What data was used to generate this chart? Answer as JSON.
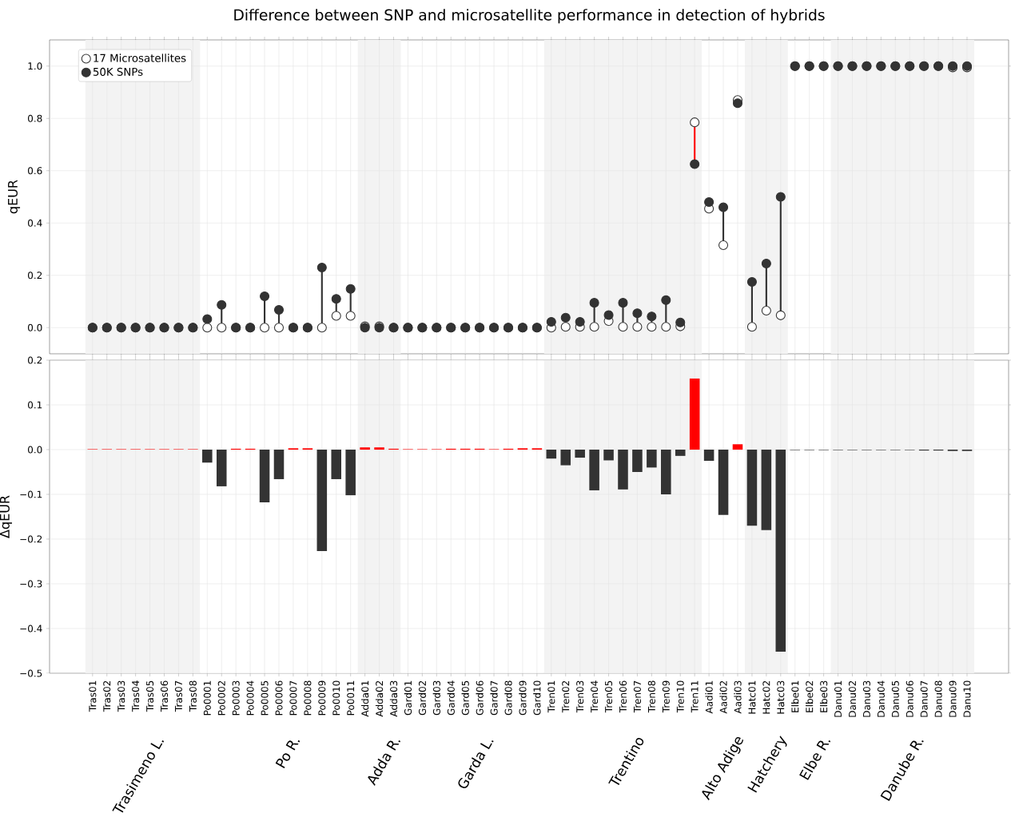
{
  "chart_data": [
    {
      "type": "scatter",
      "title": "Difference between SNP and microsatellite performance in detection of hybrids",
      "ylabel": "qEUR",
      "categories": [
        "Tras01",
        "Tras02",
        "Tras03",
        "Tras04",
        "Tras05",
        "Tras06",
        "Tras07",
        "Tras08",
        "Po0001",
        "Po0002",
        "Po0003",
        "Po0004",
        "Po0005",
        "Po0006",
        "Po0007",
        "Po0008",
        "Po0009",
        "Po0010",
        "Po0011",
        "Adda01",
        "Adda02",
        "Adda03",
        "Gard01",
        "Gard02",
        "Gard03",
        "Gard04",
        "Gard05",
        "Gard06",
        "Gard07",
        "Gard08",
        "Gard09",
        "Gard10",
        "Tren01",
        "Tren02",
        "Tren03",
        "Tren04",
        "Tren05",
        "Tren06",
        "Tren07",
        "Tren08",
        "Tren09",
        "Tren10",
        "Tren11",
        "Aadi01",
        "Aadi02",
        "Aadi03",
        "Hatc01",
        "Hatc02",
        "Hatc03",
        "Elbe01",
        "Elbe02",
        "Elbe03",
        "Danu01",
        "Danu02",
        "Danu03",
        "Danu04",
        "Danu05",
        "Danu06",
        "Danu07",
        "Danu08",
        "Danu09",
        "Danu10"
      ],
      "series": [
        {
          "name": "17 Microsatellites",
          "color": "#ffffff",
          "values": [
            0,
            0,
            0,
            0,
            0,
            0,
            0,
            0,
            0,
            0,
            0,
            0,
            0,
            0,
            0,
            0,
            0,
            0.045,
            0.045,
            0.005,
            0.005,
            0,
            0,
            0,
            0,
            0,
            0,
            0,
            0,
            0,
            0,
            0,
            0,
            0.003,
            0.003,
            0.003,
            0.025,
            0.003,
            0.003,
            0.003,
            0.003,
            0.005,
            0.785,
            0.455,
            0.315,
            0.87,
            0.003,
            0.065,
            0.047,
            1,
            1,
            1,
            1,
            1,
            1,
            1,
            1,
            1,
            1,
            1,
            0.995,
            0.995
          ]
        },
        {
          "name": "50K SNPs",
          "color": "#333333",
          "values": [
            0,
            0,
            0,
            0,
            0,
            0,
            0,
            0,
            0.033,
            0.087,
            0,
            0,
            0.12,
            0.068,
            0,
            0,
            0.23,
            0.11,
            0.148,
            0,
            0,
            0,
            0,
            0,
            0,
            0,
            0,
            0,
            0,
            0,
            0,
            0,
            0.022,
            0.038,
            0.022,
            0.095,
            0.048,
            0.095,
            0.055,
            0.043,
            0.105,
            0.02,
            0.625,
            0.48,
            0.46,
            0.858,
            0.175,
            0.245,
            0.5,
            1,
            1,
            1,
            1,
            1,
            1,
            1,
            1,
            1,
            1,
            1,
            1,
            1
          ]
        }
      ],
      "ylim": [
        -0.1,
        1.1
      ],
      "yticks": [
        {
          "value": 0,
          "label": "0.0"
        },
        0.2,
        0.4,
        0.6,
        0.8,
        {
          "value": 1,
          "label": "1.0"
        }
      ],
      "grid": true,
      "legend": "top left",
      "marker": "circle",
      "tick_labels": "y",
      "bands": [
        {
          "axis": "x",
          "from": "Tras01",
          "to": "Tras08",
          "color": "#f3f3f3"
        },
        {
          "axis": "x",
          "from": "Adda01",
          "to": "Adda03",
          "color": "#f3f3f3"
        },
        {
          "axis": "x",
          "from": "Tren01",
          "to": "Tren11",
          "color": "#f3f3f3"
        },
        {
          "axis": "x",
          "from": "Hatc01",
          "to": "Hatc03",
          "color": "#f3f3f3"
        },
        {
          "axis": "x",
          "from": "Danu01",
          "to": "Danu10",
          "color": "#f3f3f3"
        }
      ]
    },
    {
      "type": "bar",
      "ylabel": "ΔqEUR",
      "categories": [
        "Tras01",
        "Tras02",
        "Tras03",
        "Tras04",
        "Tras05",
        "Tras06",
        "Tras07",
        "Tras08",
        "Po0001",
        "Po0002",
        "Po0003",
        "Po0004",
        "Po0005",
        "Po0006",
        "Po0007",
        "Po0008",
        "Po0009",
        "Po0010",
        "Po0011",
        "Adda01",
        "Adda02",
        "Adda03",
        "Gard01",
        "Gard02",
        "Gard03",
        "Gard04",
        "Gard05",
        "Gard06",
        "Gard07",
        "Gard08",
        "Gard09",
        "Gard10",
        "Tren01",
        "Tren02",
        "Tren03",
        "Tren04",
        "Tren05",
        "Tren06",
        "Tren07",
        "Tren08",
        "Tren09",
        "Tren10",
        "Tren11",
        "Aadi01",
        "Aadi02",
        "Aadi03",
        "Hatc01",
        "Hatc02",
        "Hatc03",
        "Elbe01",
        "Elbe02",
        "Elbe03",
        "Danu01",
        "Danu02",
        "Danu03",
        "Danu04",
        "Danu05",
        "Danu06",
        "Danu07",
        "Danu08",
        "Danu09",
        "Danu10"
      ],
      "values": [
        0.001,
        0.001,
        0.001,
        0.001,
        0.001,
        0.001,
        0.001,
        0.001,
        -0.029,
        -0.082,
        0.002,
        0.002,
        -0.118,
        -0.066,
        0.003,
        0.003,
        -0.227,
        -0.066,
        -0.102,
        0.005,
        0.005,
        0.002,
        0.001,
        0.001,
        0.001,
        0.002,
        0.002,
        0.002,
        0.001,
        0.002,
        0.003,
        0.003,
        -0.02,
        -0.035,
        -0.018,
        -0.091,
        -0.024,
        -0.089,
        -0.05,
        -0.04,
        -0.1,
        -0.014,
        0.159,
        -0.025,
        -0.146,
        0.012,
        -0.17,
        -0.18,
        -0.452,
        -0.001,
        -0.001,
        -0.001,
        -0.001,
        -0.001,
        -0.001,
        -0.001,
        -0.001,
        -0.001,
        -0.002,
        -0.002,
        -0.003,
        -0.003
      ],
      "colors": [
        "#ff0000",
        "#ff0000",
        "#ff0000",
        "#ff0000",
        "#ff0000",
        "#ff0000",
        "#ff0000",
        "#ff0000",
        "#333333",
        "#333333",
        "#ff0000",
        "#ff0000",
        "#333333",
        "#333333",
        "#ff0000",
        "#ff0000",
        "#333333",
        "#333333",
        "#333333",
        "#ff0000",
        "#ff0000",
        "#ff0000",
        "#ff0000",
        "#ff0000",
        "#ff0000",
        "#ff0000",
        "#ff0000",
        "#ff0000",
        "#ff0000",
        "#ff0000",
        "#ff0000",
        "#ff0000",
        "#333333",
        "#333333",
        "#333333",
        "#333333",
        "#333333",
        "#333333",
        "#333333",
        "#333333",
        "#333333",
        "#333333",
        "#ff0000",
        "#333333",
        "#333333",
        "#ff0000",
        "#333333",
        "#333333",
        "#333333",
        "#333333",
        "#333333",
        "#333333",
        "#333333",
        "#333333",
        "#333333",
        "#333333",
        "#333333",
        "#333333",
        "#333333",
        "#333333",
        "#333333",
        "#333333"
      ],
      "ylim": [
        -0.5,
        0.2
      ],
      "yticks": [
        {
          "value": -0.5,
          "label": "−0.5"
        },
        {
          "value": -0.4,
          "label": "−0.4"
        },
        {
          "value": -0.3,
          "label": "−0.3"
        },
        {
          "value": -0.2,
          "label": "−0.2"
        },
        {
          "value": -0.1,
          "label": "−0.1"
        },
        {
          "value": 0,
          "label": "0.0"
        },
        0.1,
        0.2
      ],
      "grid": true,
      "bands": [
        {
          "axis": "x",
          "from": "Tras01",
          "to": "Tras08",
          "color": "#f3f3f3"
        },
        {
          "axis": "x",
          "from": "Po0001",
          "to": "Po0011",
          "color": "#ffffff"
        },
        {
          "axis": "x",
          "from": "Adda01",
          "to": "Adda03",
          "color": "#f3f3f3"
        },
        {
          "axis": "x",
          "from": "Gard01",
          "to": "Gard10",
          "color": "#ffffff"
        },
        {
          "axis": "x",
          "from": "Tren01",
          "to": "Tren11",
          "color": "#f3f3f3"
        },
        {
          "axis": "x",
          "from": "Aadi01",
          "to": "Aadi03",
          "color": "#ffffff"
        },
        {
          "axis": "x",
          "from": "Hatc01",
          "to": "Hatc03",
          "color": "#f3f3f3"
        },
        {
          "axis": "x",
          "from": "Elbe01",
          "to": "Elbe03",
          "color": "#ffffff"
        },
        {
          "axis": "x",
          "from": "Danu01",
          "to": "Danu10",
          "color": "#f3f3f3"
        }
      ],
      "annotations": [
        "Trasimeno L.",
        "Po R.",
        "Adda R.",
        "Garda L.",
        "Trentino",
        "Alto Adige",
        "Hatchery",
        "Elbe R.",
        "Danube R."
      ]
    }
  ]
}
